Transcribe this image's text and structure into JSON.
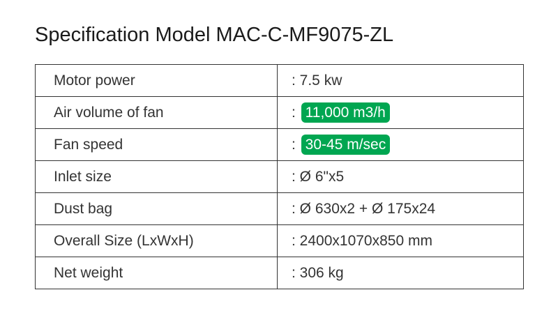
{
  "title": "Specification Model MAC-C-MF9075-ZL",
  "highlight_color": "#00a651",
  "rows": [
    {
      "label": "Motor power",
      "value": "7.5 kw",
      "highlight": false
    },
    {
      "label": "Air volume of fan",
      "value": "11,000 m3/h",
      "highlight": true
    },
    {
      "label": "Fan speed",
      "value": "30-45 m/sec",
      "highlight": true
    },
    {
      "label": "Inlet size",
      "value": "Ø 6\"x5",
      "highlight": false
    },
    {
      "label": "Dust bag",
      "value": "Ø 630x2 + Ø 175x24",
      "highlight": false
    },
    {
      "label": "Overall Size (LxWxH)",
      "value": "2400x1070x850 mm",
      "highlight": false
    },
    {
      "label": "Net weight",
      "value": "306 kg",
      "highlight": false
    }
  ]
}
